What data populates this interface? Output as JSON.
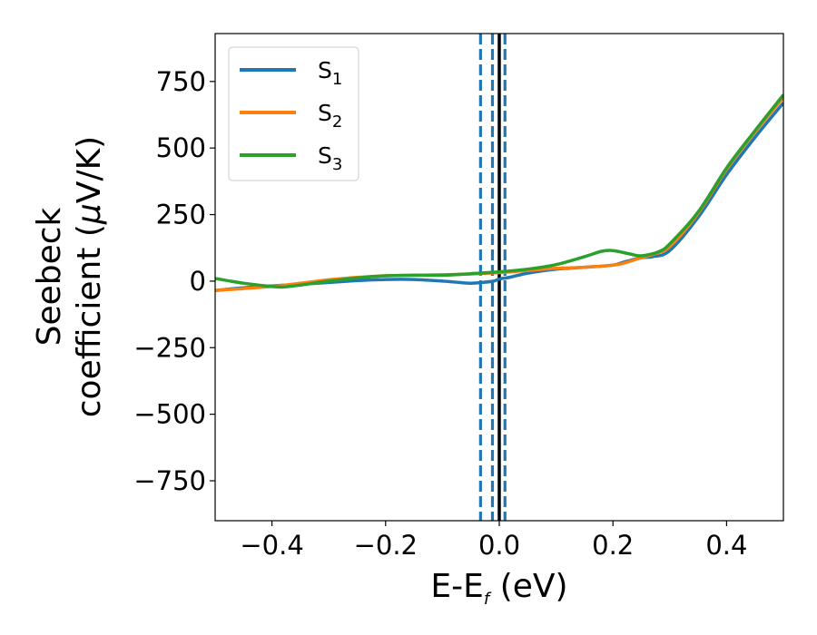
{
  "chart_data": {
    "type": "line",
    "title": "",
    "xlabel": {
      "main": "E-E",
      "sub": "f",
      "suffix": " (eV)"
    },
    "ylabel": {
      "line1": "Seebeck",
      "line2_pre": "coefficient  (",
      "line2_mu": "μ",
      "line2_post": "V/K)"
    },
    "xlim": [
      -0.5,
      0.5
    ],
    "ylim": [
      -900,
      930
    ],
    "xticks": [
      -0.4,
      -0.2,
      0.0,
      0.2,
      0.4
    ],
    "xtick_labels": [
      "−0.4",
      "−0.2",
      "0.0",
      "0.2",
      "0.4"
    ],
    "yticks": [
      750,
      500,
      250,
      0,
      -250,
      -500,
      -750
    ],
    "ytick_labels": [
      "750",
      "500",
      "250",
      "0",
      "−250",
      "−500",
      "−750"
    ],
    "grid": false,
    "legend_position": "top-left",
    "vlines": [
      {
        "x": -0.033,
        "style": "dashed",
        "color": "#1f77b4"
      },
      {
        "x": -0.012,
        "style": "dashed",
        "color": "#1f77b4"
      },
      {
        "x": 0.01,
        "style": "dashed",
        "color": "#1f77b4"
      },
      {
        "x": 0.0,
        "style": "solid",
        "color": "#000000"
      }
    ],
    "series": [
      {
        "name": "S",
        "sub": "1",
        "color": "#1f77b4",
        "x": [
          -0.5,
          -0.45,
          -0.4,
          -0.35,
          -0.3,
          -0.25,
          -0.2,
          -0.15,
          -0.1,
          -0.07,
          -0.05,
          -0.03,
          -0.01,
          0.0,
          0.02,
          0.05,
          0.1,
          0.15,
          0.2,
          0.22,
          0.25,
          0.27,
          0.3,
          0.35,
          0.4,
          0.45,
          0.5
        ],
        "y": [
          -35,
          -25,
          -18,
          -12,
          -5,
          2,
          6,
          6,
          0,
          -5,
          -8,
          -5,
          0,
          8,
          15,
          30,
          45,
          52,
          60,
          72,
          88,
          92,
          115,
          240,
          400,
          540,
          670
        ]
      },
      {
        "name": "S",
        "sub": "2",
        "color": "#ff7f0e",
        "x": [
          -0.5,
          -0.45,
          -0.4,
          -0.35,
          -0.3,
          -0.25,
          -0.2,
          -0.15,
          -0.1,
          -0.05,
          0.0,
          0.05,
          0.1,
          0.15,
          0.2,
          0.22,
          0.25,
          0.27,
          0.3,
          0.35,
          0.4,
          0.45,
          0.5
        ],
        "y": [
          -35,
          -28,
          -20,
          -8,
          5,
          14,
          20,
          22,
          24,
          27,
          32,
          40,
          48,
          52,
          60,
          68,
          88,
          100,
          130,
          255,
          420,
          560,
          690
        ]
      },
      {
        "name": "S",
        "sub": "3",
        "color": "#2ca02c",
        "x": [
          -0.5,
          -0.45,
          -0.4,
          -0.38,
          -0.35,
          -0.3,
          -0.25,
          -0.2,
          -0.15,
          -0.1,
          -0.05,
          0.0,
          0.05,
          0.1,
          0.15,
          0.18,
          0.2,
          0.23,
          0.25,
          0.28,
          0.3,
          0.35,
          0.4,
          0.45,
          0.5
        ],
        "y": [
          10,
          -8,
          -20,
          -22,
          -15,
          0,
          12,
          20,
          22,
          22,
          28,
          35,
          45,
          62,
          92,
          112,
          115,
          102,
          95,
          110,
          140,
          260,
          425,
          565,
          700
        ]
      }
    ]
  }
}
